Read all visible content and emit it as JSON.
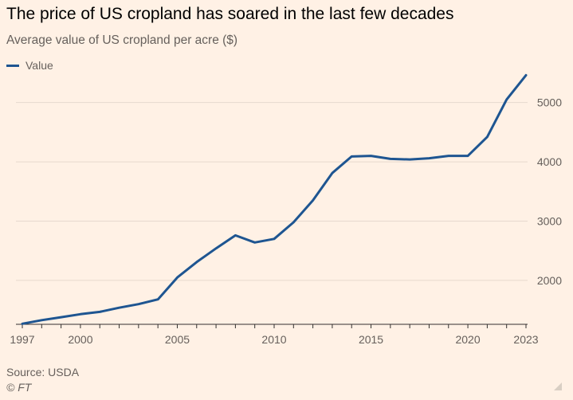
{
  "colors": {
    "background": "#fff1e5",
    "line": "#1e5591",
    "grid": "#e6d9ce",
    "axis": "#33302e",
    "text": "#66605c"
  },
  "chart_data": {
    "type": "line",
    "title": "The price of US cropland has soared in the last few decades",
    "subtitle": "Average value of US cropland per acre ($)",
    "legend": [
      "Value"
    ],
    "legend_position": "top-left",
    "xlabel": "",
    "ylabel": "",
    "xlim": [
      1997,
      2023
    ],
    "ylim": [
      1260,
      5600
    ],
    "x_ticks": [
      1997,
      2000,
      2005,
      2010,
      2015,
      2020,
      2023
    ],
    "y_ticks": [
      2000,
      3000,
      4000,
      5000
    ],
    "grid": true,
    "series": [
      {
        "name": "Value",
        "x": [
          1997,
          1998,
          1999,
          2000,
          2001,
          2002,
          2003,
          2004,
          2005,
          2006,
          2007,
          2008,
          2009,
          2010,
          2011,
          2012,
          2013,
          2014,
          2015,
          2016,
          2017,
          2018,
          2019,
          2020,
          2021,
          2022,
          2023
        ],
        "values": [
          1270,
          1330,
          1380,
          1430,
          1470,
          1540,
          1600,
          1680,
          2050,
          2310,
          2540,
          2760,
          2640,
          2700,
          2980,
          3350,
          3810,
          4090,
          4100,
          4050,
          4040,
          4060,
          4100,
          4100,
          4420,
          5050,
          5460
        ]
      }
    ]
  },
  "footer": {
    "source": "Source: USDA",
    "copyright": "© FT"
  }
}
